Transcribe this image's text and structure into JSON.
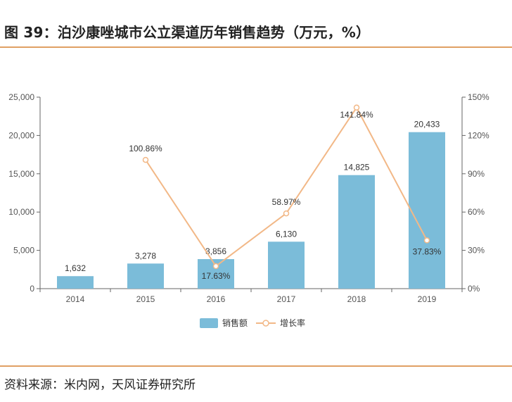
{
  "header": {
    "title": "图 39：泊沙康唑城市公立渠道历年销售趋势（万元，%）"
  },
  "footer": {
    "source": "资料来源：米内网，天风证券研究所"
  },
  "colors": {
    "bar": "#7bbcd9",
    "line": "#f2b887",
    "axis": "#666666",
    "rule": "#e0a064"
  },
  "chart_data": {
    "type": "bar",
    "categories": [
      "2014",
      "2015",
      "2016",
      "2017",
      "2018",
      "2019"
    ],
    "series": [
      {
        "name": "销售额",
        "type": "bar",
        "axis": "left",
        "values": [
          1632,
          3278,
          3856,
          6130,
          14825,
          20433
        ],
        "labels": [
          "1,632",
          "3,278",
          "3,856",
          "6,130",
          "14,825",
          "20,433"
        ]
      },
      {
        "name": "增长率",
        "type": "line",
        "axis": "right",
        "values": [
          null,
          100.86,
          17.63,
          58.97,
          141.84,
          37.83
        ],
        "labels": [
          "",
          "100.86%",
          "17.63%",
          "58.97%",
          "141.84%",
          "37.83%"
        ]
      }
    ],
    "y_left": {
      "min": 0,
      "max": 25000,
      "ticks": [
        0,
        5000,
        10000,
        15000,
        20000,
        25000
      ],
      "tick_labels": [
        "0",
        "5,000",
        "10,000",
        "15,000",
        "20,000",
        "25,000"
      ]
    },
    "y_right": {
      "min": 0,
      "max": 150,
      "ticks": [
        0,
        30,
        60,
        90,
        120,
        150
      ],
      "tick_labels": [
        "0%",
        "30%",
        "60%",
        "90%",
        "120%",
        "150%"
      ]
    },
    "legend_position": "bottom-center",
    "grid": false
  }
}
